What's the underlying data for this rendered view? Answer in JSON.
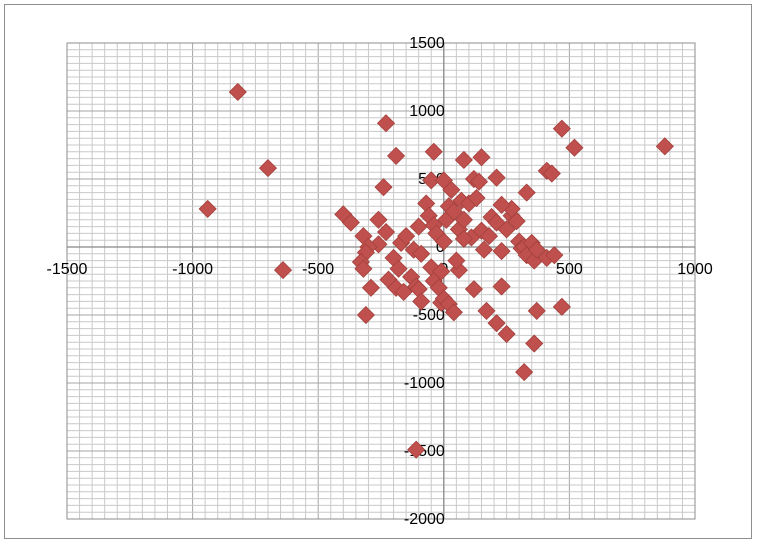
{
  "chart_data": {
    "type": "scatter",
    "title": "",
    "xlabel": "",
    "ylabel": "",
    "xlim": [
      -1500,
      1000
    ],
    "ylim": [
      -2000,
      1500
    ],
    "x_ticks": [
      "-1500",
      "-1000",
      "-500",
      "0",
      "500",
      "1000"
    ],
    "y_ticks": [
      "1500",
      "1000",
      "500",
      "0",
      "-500",
      "-1000",
      "-1500",
      "-2000"
    ],
    "grid": true,
    "legend": "none",
    "marker": {
      "shape": "diamond",
      "color": "#C0504D",
      "edge": "#A3403D"
    },
    "series": [
      {
        "points": [
          [
            -820,
            1140
          ],
          [
            -230,
            910
          ],
          [
            -700,
            580
          ],
          [
            -940,
            280
          ],
          [
            -640,
            -170
          ],
          [
            -190,
            670
          ],
          [
            -40,
            700
          ],
          [
            80,
            640
          ],
          [
            150,
            660
          ],
          [
            470,
            870
          ],
          [
            520,
            730
          ],
          [
            880,
            740
          ],
          [
            410,
            560
          ],
          [
            430,
            540
          ],
          [
            330,
            400
          ],
          [
            -240,
            440
          ],
          [
            -50,
            490
          ],
          [
            0,
            490
          ],
          [
            120,
            500
          ],
          [
            210,
            510
          ],
          [
            -400,
            240
          ],
          [
            -370,
            180
          ],
          [
            -320,
            80
          ],
          [
            -260,
            200
          ],
          [
            -230,
            110
          ],
          [
            -260,
            20
          ],
          [
            -300,
            0
          ],
          [
            -310,
            -40
          ],
          [
            -330,
            -110
          ],
          [
            -320,
            -160
          ],
          [
            -200,
            -80
          ],
          [
            -180,
            -160
          ],
          [
            -170,
            30
          ],
          [
            -150,
            80
          ],
          [
            -120,
            -20
          ],
          [
            -100,
            150
          ],
          [
            -90,
            -50
          ],
          [
            -70,
            320
          ],
          [
            -60,
            230
          ],
          [
            -40,
            160
          ],
          [
            -30,
            100
          ],
          [
            0,
            40
          ],
          [
            10,
            200
          ],
          [
            20,
            300
          ],
          [
            30,
            420
          ],
          [
            40,
            260
          ],
          [
            60,
            130
          ],
          [
            70,
            340
          ],
          [
            80,
            200
          ],
          [
            100,
            320
          ],
          [
            110,
            70
          ],
          [
            130,
            360
          ],
          [
            140,
            480
          ],
          [
            150,
            120
          ],
          [
            180,
            80
          ],
          [
            190,
            220
          ],
          [
            210,
            180
          ],
          [
            230,
            -30
          ],
          [
            250,
            130
          ],
          [
            270,
            230
          ],
          [
            270,
            280
          ],
          [
            290,
            190
          ],
          [
            300,
            40
          ],
          [
            310,
            -10
          ],
          [
            320,
            0
          ],
          [
            330,
            -60
          ],
          [
            350,
            30
          ],
          [
            360,
            -100
          ],
          [
            370,
            -20
          ],
          [
            410,
            -80
          ],
          [
            440,
            -60
          ],
          [
            -50,
            -150
          ],
          [
            -40,
            -250
          ],
          [
            -20,
            -300
          ],
          [
            -10,
            -410
          ],
          [
            0,
            -380
          ],
          [
            20,
            -420
          ],
          [
            40,
            -480
          ],
          [
            -130,
            -220
          ],
          [
            -110,
            -290
          ],
          [
            -100,
            -310
          ],
          [
            -90,
            -400
          ],
          [
            60,
            -170
          ],
          [
            120,
            -310
          ],
          [
            170,
            -470
          ],
          [
            210,
            -560
          ],
          [
            230,
            -290
          ],
          [
            250,
            -640
          ],
          [
            370,
            -470
          ],
          [
            360,
            -710
          ],
          [
            320,
            -920
          ],
          [
            470,
            -440
          ],
          [
            -310,
            -500
          ],
          [
            -290,
            -300
          ],
          [
            -220,
            -240
          ],
          [
            -190,
            -300
          ],
          [
            -160,
            -330
          ],
          [
            -110,
            -1490
          ],
          [
            -10,
            -180
          ],
          [
            50,
            -100
          ],
          [
            80,
            60
          ],
          [
            230,
            310
          ],
          [
            160,
            -20
          ]
        ]
      }
    ]
  }
}
